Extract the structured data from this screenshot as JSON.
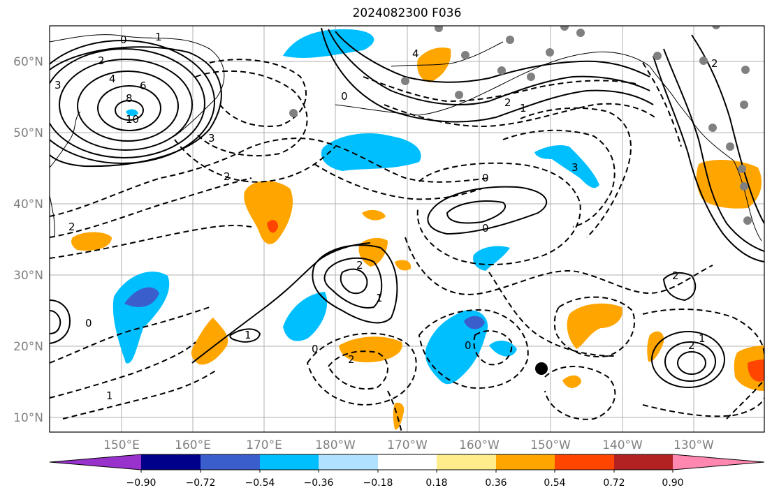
{
  "title": "2024082300 F036",
  "map": {
    "lat_ticks": [
      "60°N",
      "50°N",
      "40°N",
      "30°N",
      "20°N",
      "10°N"
    ],
    "lon_ticks": [
      "150°E",
      "160°E",
      "170°E",
      "180°W",
      "170°W",
      "160°W",
      "150°W",
      "140°W",
      "130°W"
    ],
    "contour_labels": [
      "0",
      "1",
      "2",
      "4",
      "6",
      "8",
      "10",
      "3",
      "2",
      "0",
      "4",
      "2",
      "1",
      "0",
      "2",
      "3",
      "0",
      "2",
      "1",
      "0",
      "2",
      "1",
      "1",
      "0",
      "0",
      "2",
      "2",
      "1",
      "2",
      "3"
    ],
    "colors": {
      "background": "#ffffff",
      "grid": "#b0b0b0",
      "station_dot": "#808080",
      "storm_dot": "#000000"
    }
  },
  "colorbar": {
    "labels": [
      "−0.90",
      "−0.72",
      "−0.54",
      "−0.36",
      "−0.18",
      "0.18",
      "0.36",
      "0.54",
      "0.72",
      "0.90"
    ],
    "colors": [
      "#9932cc",
      "#00008b",
      "#3a5fcd",
      "#00bfff",
      "#b0e2ff",
      "#ffffff",
      "#ffec8b",
      "#ffa500",
      "#ff4500",
      "#b22222",
      "#ff87b0"
    ]
  }
}
